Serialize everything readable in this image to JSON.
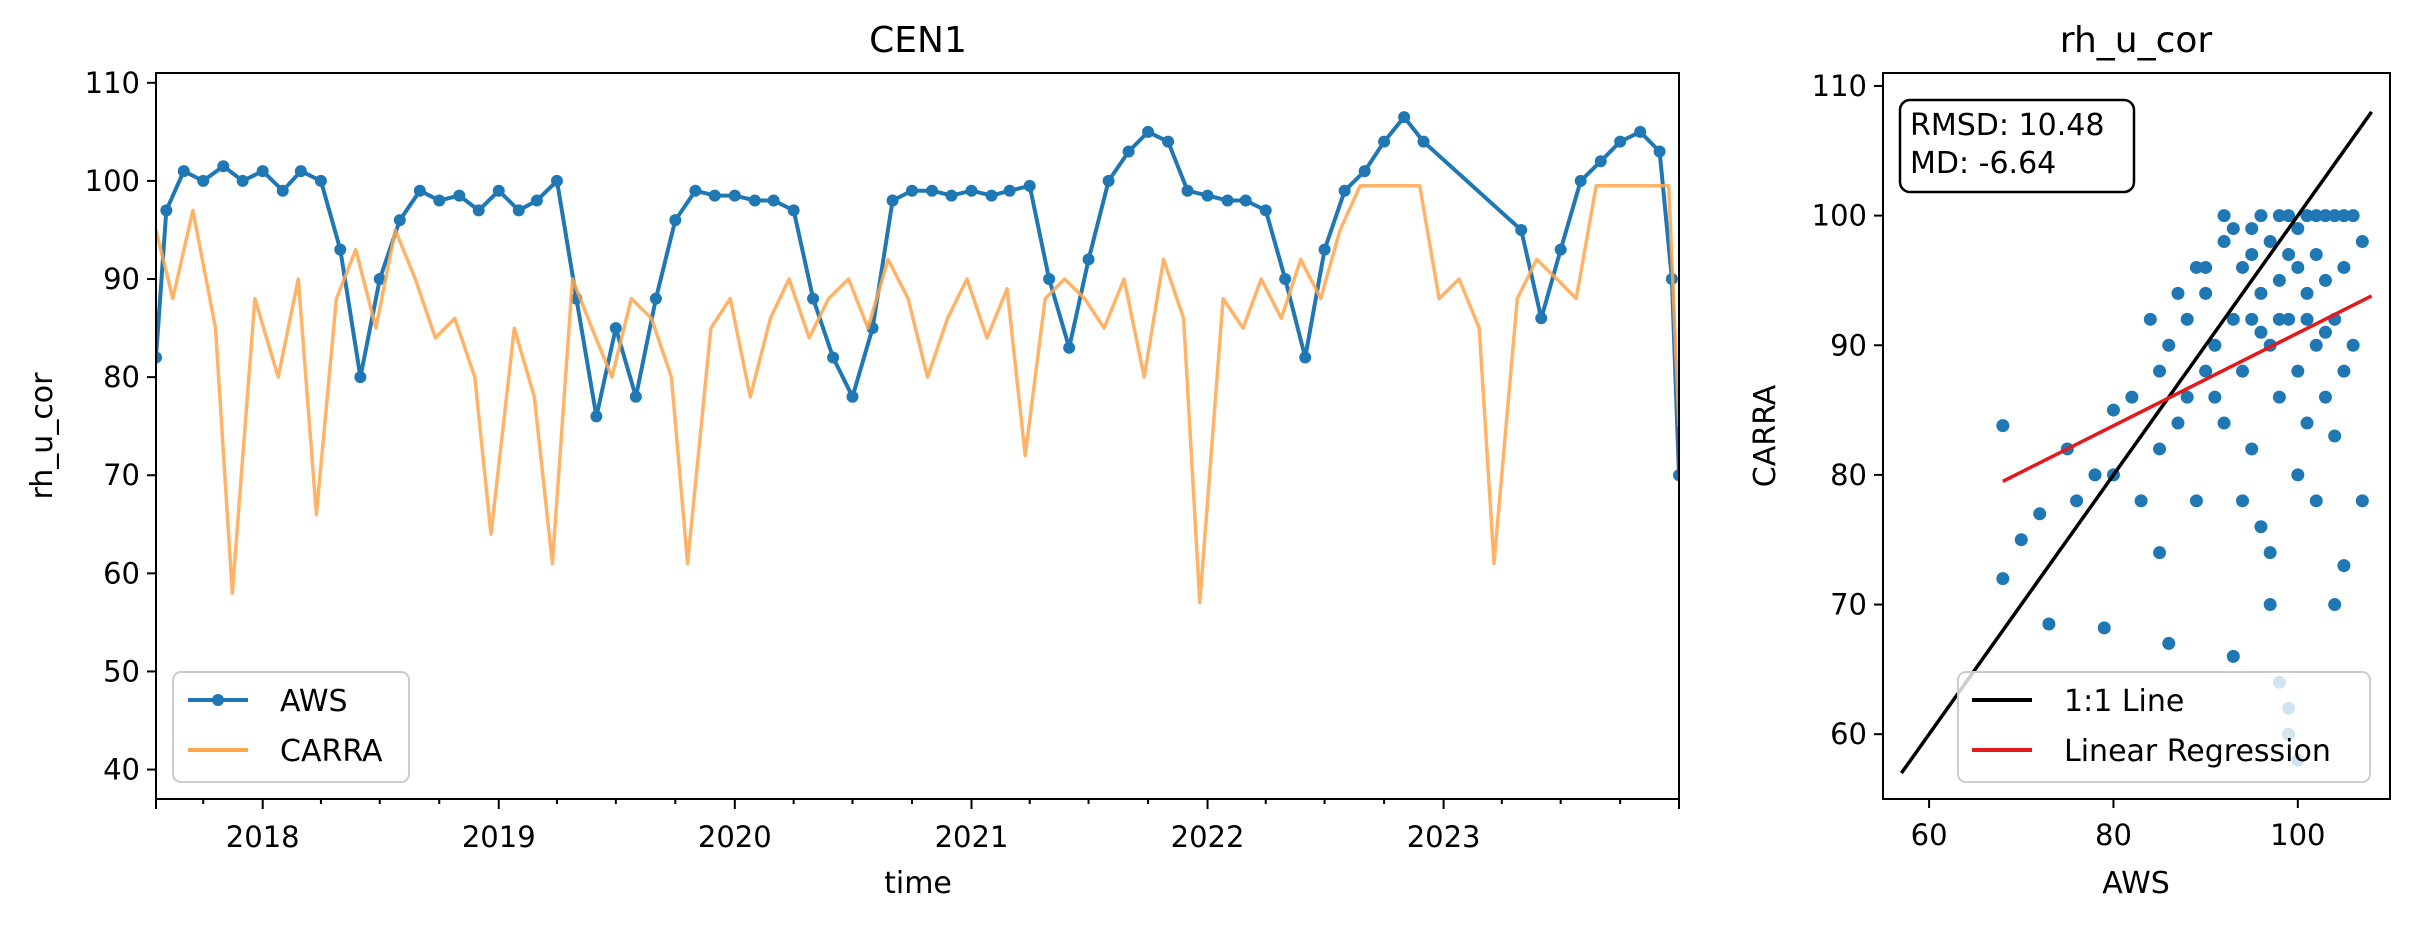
{
  "colors": {
    "aws": "#1f77b4",
    "carra": "#ffa64d",
    "one_to_one": "#000000",
    "regression": "#e31a1c"
  },
  "chart_data": [
    {
      "type": "line",
      "title": "CEN1",
      "xlabel": "time",
      "ylabel": "rh_u_cor",
      "xlim": [
        "2017-07-20",
        "2023-12-31"
      ],
      "ylim": [
        37,
        111
      ],
      "x_tick_labels": [
        "2018",
        "2019",
        "2020",
        "2021",
        "2022",
        "2023"
      ],
      "y_ticks": [
        40,
        50,
        60,
        70,
        80,
        90,
        100,
        110
      ],
      "legend_position": "lower-left",
      "series": [
        {
          "name": "AWS",
          "style": "line-with-markers",
          "points": [
            [
              "2017-07-20",
              82
            ],
            [
              "2017-08-05",
              97
            ],
            [
              "2017-09-01",
              101
            ],
            [
              "2017-10-01",
              100
            ],
            [
              "2017-11-01",
              101.5
            ],
            [
              "2017-12-01",
              100
            ],
            [
              "2018-01-01",
              101
            ],
            [
              "2018-02-01",
              99
            ],
            [
              "2018-03-01",
              101
            ],
            [
              "2018-04-01",
              100
            ],
            [
              "2018-05-01",
              93
            ],
            [
              "2018-06-01",
              80
            ],
            [
              "2018-07-01",
              90
            ],
            [
              "2018-08-01",
              96
            ],
            [
              "2018-09-01",
              99
            ],
            [
              "2018-10-01",
              98
            ],
            [
              "2018-11-01",
              98.5
            ],
            [
              "2018-12-01",
              97
            ],
            [
              "2019-01-01",
              99
            ],
            [
              "2019-02-01",
              97
            ],
            [
              "2019-03-01",
              98
            ],
            [
              "2019-04-01",
              100
            ],
            [
              "2019-05-01",
              88
            ],
            [
              "2019-06-01",
              76
            ],
            [
              "2019-07-01",
              85
            ],
            [
              "2019-08-01",
              78
            ],
            [
              "2019-09-01",
              88
            ],
            [
              "2019-10-01",
              96
            ],
            [
              "2019-11-01",
              99
            ],
            [
              "2019-12-01",
              98.5
            ],
            [
              "2020-01-01",
              98.5
            ],
            [
              "2020-02-01",
              98
            ],
            [
              "2020-03-01",
              98
            ],
            [
              "2020-04-01",
              97
            ],
            [
              "2020-05-01",
              88
            ],
            [
              "2020-06-01",
              82
            ],
            [
              "2020-07-01",
              78
            ],
            [
              "2020-08-01",
              85
            ],
            [
              "2020-09-01",
              98
            ],
            [
              "2020-10-01",
              99
            ],
            [
              "2020-11-01",
              99
            ],
            [
              "2020-12-01",
              98.5
            ],
            [
              "2021-01-01",
              99
            ],
            [
              "2021-02-01",
              98.5
            ],
            [
              "2021-03-01",
              99
            ],
            [
              "2021-04-01",
              99.5
            ],
            [
              "2021-05-01",
              90
            ],
            [
              "2021-06-01",
              83
            ],
            [
              "2021-07-01",
              92
            ],
            [
              "2021-08-01",
              100
            ],
            [
              "2021-09-01",
              103
            ],
            [
              "2021-10-01",
              105
            ],
            [
              "2021-11-01",
              104
            ],
            [
              "2021-12-01",
              99
            ],
            [
              "2022-01-01",
              98.5
            ],
            [
              "2022-02-01",
              98
            ],
            [
              "2022-03-01",
              98
            ],
            [
              "2022-04-01",
              97
            ],
            [
              "2022-05-01",
              90
            ],
            [
              "2022-06-01",
              82
            ],
            [
              "2022-07-01",
              93
            ],
            [
              "2022-08-01",
              99
            ],
            [
              "2022-09-01",
              101
            ],
            [
              "2022-10-01",
              104
            ],
            [
              "2022-11-01",
              106.5
            ],
            [
              "2022-12-01",
              104
            ],
            [
              "2023-05-01",
              95
            ],
            [
              "2023-06-01",
              86
            ],
            [
              "2023-07-01",
              93
            ],
            [
              "2023-08-01",
              100
            ],
            [
              "2023-09-01",
              102
            ],
            [
              "2023-10-01",
              104
            ],
            [
              "2023-11-01",
              105
            ],
            [
              "2023-12-01",
              103
            ],
            [
              "2023-12-20",
              90
            ],
            [
              "2023-12-31",
              70
            ]
          ]
        },
        {
          "name": "CARRA",
          "style": "line",
          "points": [
            [
              "2017-07-20",
              95
            ],
            [
              "2017-08-15",
              88
            ],
            [
              "2017-09-15",
              97
            ],
            [
              "2017-10-20",
              85
            ],
            [
              "2017-11-15",
              58
            ],
            [
              "2017-12-20",
              88
            ],
            [
              "2018-01-25",
              80
            ],
            [
              "2018-02-25",
              90
            ],
            [
              "2018-03-25",
              66
            ],
            [
              "2018-04-25",
              88
            ],
            [
              "2018-05-25",
              93
            ],
            [
              "2018-06-25",
              85
            ],
            [
              "2018-07-25",
              95
            ],
            [
              "2018-08-25",
              90
            ],
            [
              "2018-09-25",
              84
            ],
            [
              "2018-10-25",
              86
            ],
            [
              "2018-11-25",
              80
            ],
            [
              "2018-12-20",
              64
            ],
            [
              "2019-01-25",
              85
            ],
            [
              "2019-02-25",
              78
            ],
            [
              "2019-03-25",
              61
            ],
            [
              "2019-04-25",
              90
            ],
            [
              "2019-05-25",
              85
            ],
            [
              "2019-06-25",
              80
            ],
            [
              "2019-07-25",
              88
            ],
            [
              "2019-08-25",
              86
            ],
            [
              "2019-09-25",
              80
            ],
            [
              "2019-10-20",
              61
            ],
            [
              "2019-11-25",
              85
            ],
            [
              "2019-12-25",
              88
            ],
            [
              "2020-01-25",
              78
            ],
            [
              "2020-02-25",
              86
            ],
            [
              "2020-03-25",
              90
            ],
            [
              "2020-04-25",
              84
            ],
            [
              "2020-05-25",
              88
            ],
            [
              "2020-06-25",
              90
            ],
            [
              "2020-07-25",
              85
            ],
            [
              "2020-08-25",
              92
            ],
            [
              "2020-09-25",
              88
            ],
            [
              "2020-10-25",
              80
            ],
            [
              "2020-11-25",
              86
            ],
            [
              "2020-12-25",
              90
            ],
            [
              "2021-01-25",
              84
            ],
            [
              "2021-02-25",
              89
            ],
            [
              "2021-03-25",
              72
            ],
            [
              "2021-04-25",
              88
            ],
            [
              "2021-05-25",
              90
            ],
            [
              "2021-06-25",
              88
            ],
            [
              "2021-07-25",
              85
            ],
            [
              "2021-08-25",
              90
            ],
            [
              "2021-09-25",
              80
            ],
            [
              "2021-10-25",
              92
            ],
            [
              "2021-11-25",
              86
            ],
            [
              "2021-12-20",
              57
            ],
            [
              "2022-01-25",
              88
            ],
            [
              "2022-02-25",
              85
            ],
            [
              "2022-03-25",
              90
            ],
            [
              "2022-04-25",
              86
            ],
            [
              "2022-05-25",
              92
            ],
            [
              "2022-06-25",
              88
            ],
            [
              "2022-07-25",
              95
            ],
            [
              "2022-08-25",
              99.5
            ],
            [
              "2022-09-25",
              99.5
            ],
            [
              "2022-10-25",
              99.5
            ],
            [
              "2022-11-25",
              99.5
            ],
            [
              "2022-12-25",
              88
            ],
            [
              "2023-01-25",
              90
            ],
            [
              "2023-02-25",
              85
            ],
            [
              "2023-03-20",
              61
            ],
            [
              "2023-04-25",
              88
            ],
            [
              "2023-05-25",
              92
            ],
            [
              "2023-06-25",
              90
            ],
            [
              "2023-07-25",
              88
            ],
            [
              "2023-08-25",
              99.5
            ],
            [
              "2023-09-25",
              99.5
            ],
            [
              "2023-10-25",
              99.5
            ],
            [
              "2023-11-25",
              99.5
            ],
            [
              "2023-12-15",
              99.5
            ],
            [
              "2023-12-31",
              75
            ]
          ]
        }
      ]
    },
    {
      "type": "scatter",
      "title": "rh_u_cor",
      "xlabel": "AWS",
      "ylabel": "CARRA",
      "xlim": [
        55,
        110
      ],
      "ylim": [
        55,
        111
      ],
      "x_ticks": [
        60,
        80,
        100
      ],
      "y_ticks": [
        60,
        70,
        80,
        90,
        100,
        110
      ],
      "legend_position": "lower-right",
      "stats": {
        "rmsd_label": "RMSD: 10.48",
        "md_label": "MD: -6.64"
      },
      "lines": [
        {
          "name": "1:1 Line",
          "points": [
            [
              57,
              57
            ],
            [
              108,
              108
            ]
          ]
        },
        {
          "name": "Linear Regression",
          "points": [
            [
              68,
              79.5
            ],
            [
              108,
              93.8
            ]
          ]
        }
      ],
      "points": [
        [
          68,
          83.8
        ],
        [
          68,
          72
        ],
        [
          70,
          75
        ],
        [
          72,
          77
        ],
        [
          73,
          68.5
        ],
        [
          75,
          82
        ],
        [
          76,
          78
        ],
        [
          78,
          80
        ],
        [
          79,
          68.2
        ],
        [
          80,
          85
        ],
        [
          80,
          80
        ],
        [
          82,
          86
        ],
        [
          83,
          78
        ],
        [
          85,
          88
        ],
        [
          85,
          82
        ],
        [
          85,
          74
        ],
        [
          86,
          90
        ],
        [
          86,
          67
        ],
        [
          87,
          84
        ],
        [
          88,
          92
        ],
        [
          88,
          86
        ],
        [
          89,
          78
        ],
        [
          90,
          94
        ],
        [
          90,
          88
        ],
        [
          90,
          96
        ],
        [
          91,
          90
        ],
        [
          92,
          98
        ],
        [
          92,
          84
        ],
        [
          93,
          92
        ],
        [
          93,
          66
        ],
        [
          94,
          96
        ],
        [
          94,
          88
        ],
        [
          95,
          99
        ],
        [
          95,
          92
        ],
        [
          95,
          82
        ],
        [
          96,
          100
        ],
        [
          96,
          94
        ],
        [
          96,
          76
        ],
        [
          97,
          98
        ],
        [
          97,
          90
        ],
        [
          97,
          70
        ],
        [
          98,
          100
        ],
        [
          98,
          95
        ],
        [
          98,
          86
        ],
        [
          98,
          64
        ],
        [
          99,
          100
        ],
        [
          99,
          92
        ],
        [
          99,
          60
        ],
        [
          100,
          99
        ],
        [
          100,
          96
        ],
        [
          100,
          88
        ],
        [
          100,
          80
        ],
        [
          101,
          100
        ],
        [
          101,
          94
        ],
        [
          101,
          84
        ],
        [
          102,
          100
        ],
        [
          102,
          97
        ],
        [
          102,
          90
        ],
        [
          102,
          78
        ],
        [
          103,
          100
        ],
        [
          103,
          95
        ],
        [
          103,
          86
        ],
        [
          104,
          100
        ],
        [
          104,
          92
        ],
        [
          104,
          70
        ],
        [
          105,
          100
        ],
        [
          105,
          96
        ],
        [
          105,
          88
        ],
        [
          106,
          100
        ],
        [
          106,
          90
        ],
        [
          107,
          98
        ],
        [
          107,
          78
        ],
        [
          100,
          58
        ],
        [
          99,
          62
        ],
        [
          97,
          74
        ],
        [
          94,
          78
        ],
        [
          91,
          86
        ],
        [
          89,
          96
        ],
        [
          87,
          94
        ],
        [
          84,
          92
        ],
        [
          92,
          100
        ],
        [
          93,
          99
        ],
        [
          95,
          97
        ],
        [
          96,
          91
        ],
        [
          98,
          92
        ],
        [
          99,
          97
        ],
        [
          101,
          92
        ],
        [
          103,
          91
        ],
        [
          104,
          83
        ],
        [
          105,
          73
        ]
      ]
    }
  ]
}
